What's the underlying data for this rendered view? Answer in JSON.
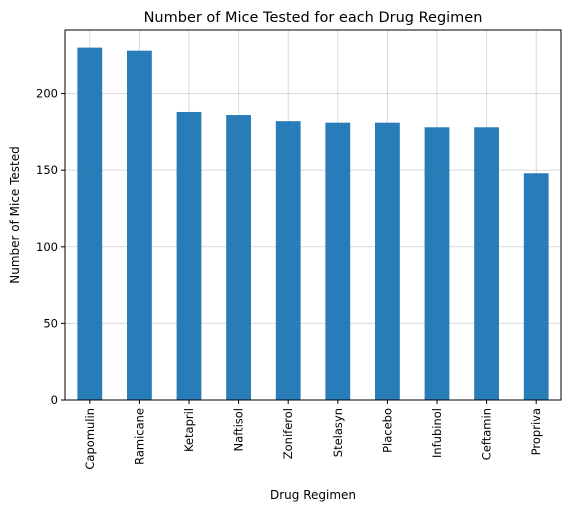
{
  "chart_data": {
    "type": "bar",
    "title": "Number of Mice Tested for each Drug Regimen",
    "xlabel": "Drug Regimen",
    "ylabel": "Number of Mice Tested",
    "categories": [
      "Capomulin",
      "Ramicane",
      "Ketapril",
      "Naftisol",
      "Zoniferol",
      "Stelasyn",
      "Placebo",
      "Infubinol",
      "Ceftamin",
      "Propriva"
    ],
    "values": [
      230,
      228,
      188,
      186,
      182,
      181,
      181,
      178,
      178,
      148
    ],
    "ylim": [
      0,
      241.5
    ],
    "yticks": [
      0,
      50,
      100,
      150,
      200
    ],
    "grid": true,
    "bar_color": "#1f77b4"
  }
}
